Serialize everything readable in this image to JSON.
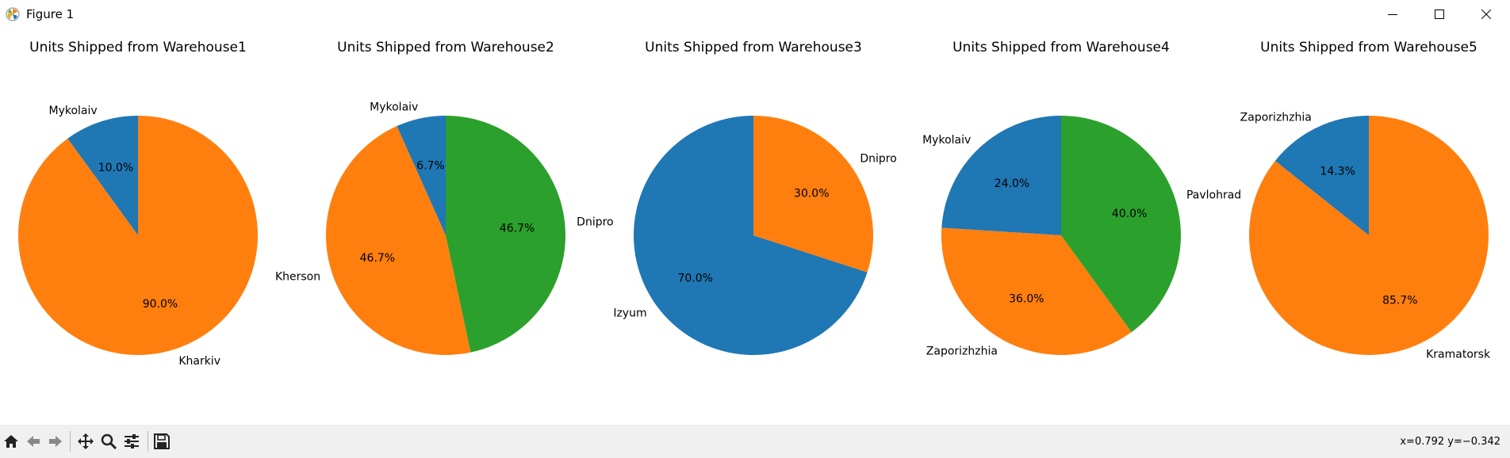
{
  "window": {
    "title": "Figure 1"
  },
  "chart_data": [
    {
      "type": "pie",
      "title": "Units Shipped from Warehouse1",
      "slices": [
        {
          "label": "Mykolaiv",
          "value": 10.0,
          "pct": "10.0%",
          "color": "#1f77b4"
        },
        {
          "label": "Kharkiv",
          "value": 90.0,
          "pct": "90.0%",
          "color": "#ff7f0e"
        }
      ]
    },
    {
      "type": "pie",
      "title": "Units Shipped from Warehouse2",
      "slices": [
        {
          "label": "Mykolaiv",
          "value": 6.7,
          "pct": "6.7%",
          "color": "#1f77b4"
        },
        {
          "label": "Kherson",
          "value": 46.7,
          "pct": "46.7%",
          "color": "#ff7f0e"
        },
        {
          "label": "Dnipro",
          "value": 46.7,
          "pct": "46.7%",
          "color": "#2ca02c"
        }
      ]
    },
    {
      "type": "pie",
      "title": "Units Shipped from Warehouse3",
      "slices": [
        {
          "label": "Izyum",
          "value": 70.0,
          "pct": "70.0%",
          "color": "#1f77b4"
        },
        {
          "label": "Dnipro",
          "value": 30.0,
          "pct": "30.0%",
          "color": "#ff7f0e"
        }
      ]
    },
    {
      "type": "pie",
      "title": "Units Shipped from Warehouse4",
      "slices": [
        {
          "label": "Mykolaiv",
          "value": 24.0,
          "pct": "24.0%",
          "color": "#1f77b4"
        },
        {
          "label": "Zaporizhzhia",
          "value": 36.0,
          "pct": "36.0%",
          "color": "#ff7f0e"
        },
        {
          "label": "Pavlohrad",
          "value": 40.0,
          "pct": "40.0%",
          "color": "#2ca02c"
        }
      ]
    },
    {
      "type": "pie",
      "title": "Units Shipped from Warehouse5",
      "slices": [
        {
          "label": "Zaporizhzhia",
          "value": 14.3,
          "pct": "14.3%",
          "color": "#1f77b4"
        },
        {
          "label": "Kramatorsk",
          "value": 85.7,
          "pct": "85.7%",
          "color": "#ff7f0e"
        }
      ]
    }
  ],
  "toolbar": {
    "buttons": [
      "home-icon",
      "back-icon",
      "forward-icon",
      "pan-icon",
      "zoom-icon",
      "configure-subplots-icon",
      "save-icon"
    ],
    "coords": "x=0.792 y=−0.342"
  }
}
